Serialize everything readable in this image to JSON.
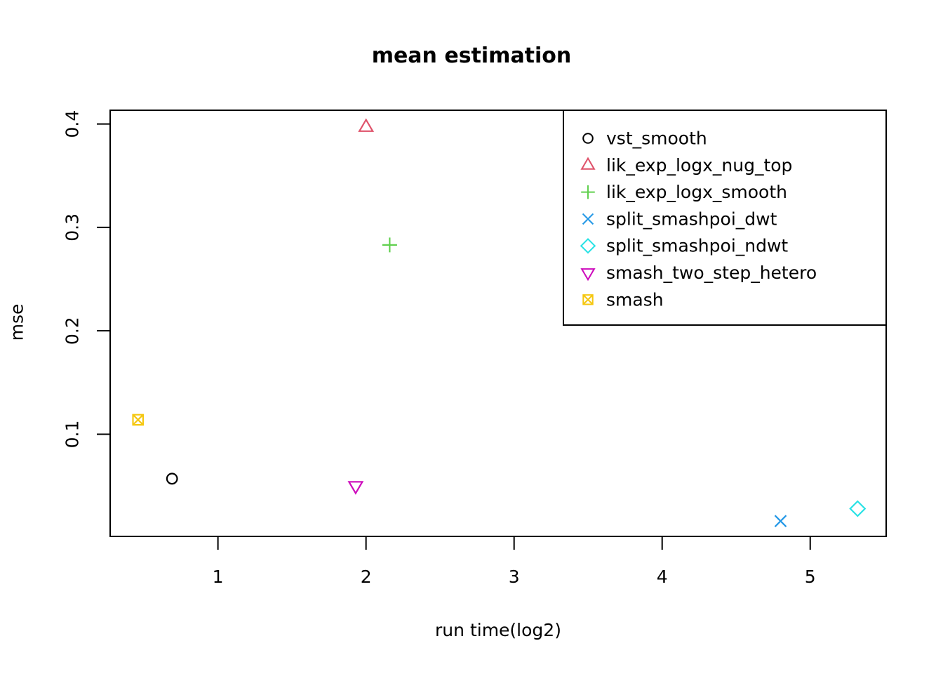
{
  "page": {
    "background_color": "#ffffff",
    "text_color": "#000000"
  },
  "chart_data": {
    "type": "scatter",
    "title": "mean estimation",
    "xlabel": "run time(log2)",
    "ylabel": "mse",
    "xlim": [
      0.272,
      5.513
    ],
    "ylim": [
      0.0012,
      0.4133
    ],
    "x_ticks": [
      1,
      2,
      3,
      4,
      5
    ],
    "x_tick_labels": [
      "1",
      "2",
      "3",
      "4",
      "5"
    ],
    "y_ticks": [
      0.1,
      0.2,
      0.3,
      0.4
    ],
    "y_tick_labels": [
      "0.1",
      "0.2",
      "0.3",
      "0.4"
    ],
    "grid": false,
    "frame": "full-box",
    "legend_position": "top-right",
    "series": [
      {
        "name": "vst_smooth",
        "marker": "circle",
        "color": "#000000",
        "points": [
          [
            0.69,
            0.057
          ]
        ]
      },
      {
        "name": "lik_exp_logx_nug_top",
        "marker": "triangle-up",
        "color": "#DF536B",
        "points": [
          [
            2.0,
            0.397
          ]
        ]
      },
      {
        "name": "lik_exp_logx_smooth",
        "marker": "plus",
        "color": "#61D04F",
        "points": [
          [
            2.16,
            0.283
          ]
        ]
      },
      {
        "name": "split_smashpoi_dwt",
        "marker": "x",
        "color": "#2297E6",
        "points": [
          [
            4.8,
            0.016
          ]
        ]
      },
      {
        "name": "split_smashpoi_ndwt",
        "marker": "diamond",
        "color": "#28E2E5",
        "points": [
          [
            5.32,
            0.028
          ]
        ]
      },
      {
        "name": "smash_two_step_hetero",
        "marker": "triangle-down",
        "color": "#CD0BBC",
        "points": [
          [
            1.93,
            0.05
          ]
        ]
      },
      {
        "name": "smash",
        "marker": "square-x",
        "color": "#F5C710",
        "points": [
          [
            0.46,
            0.114
          ]
        ]
      }
    ]
  }
}
